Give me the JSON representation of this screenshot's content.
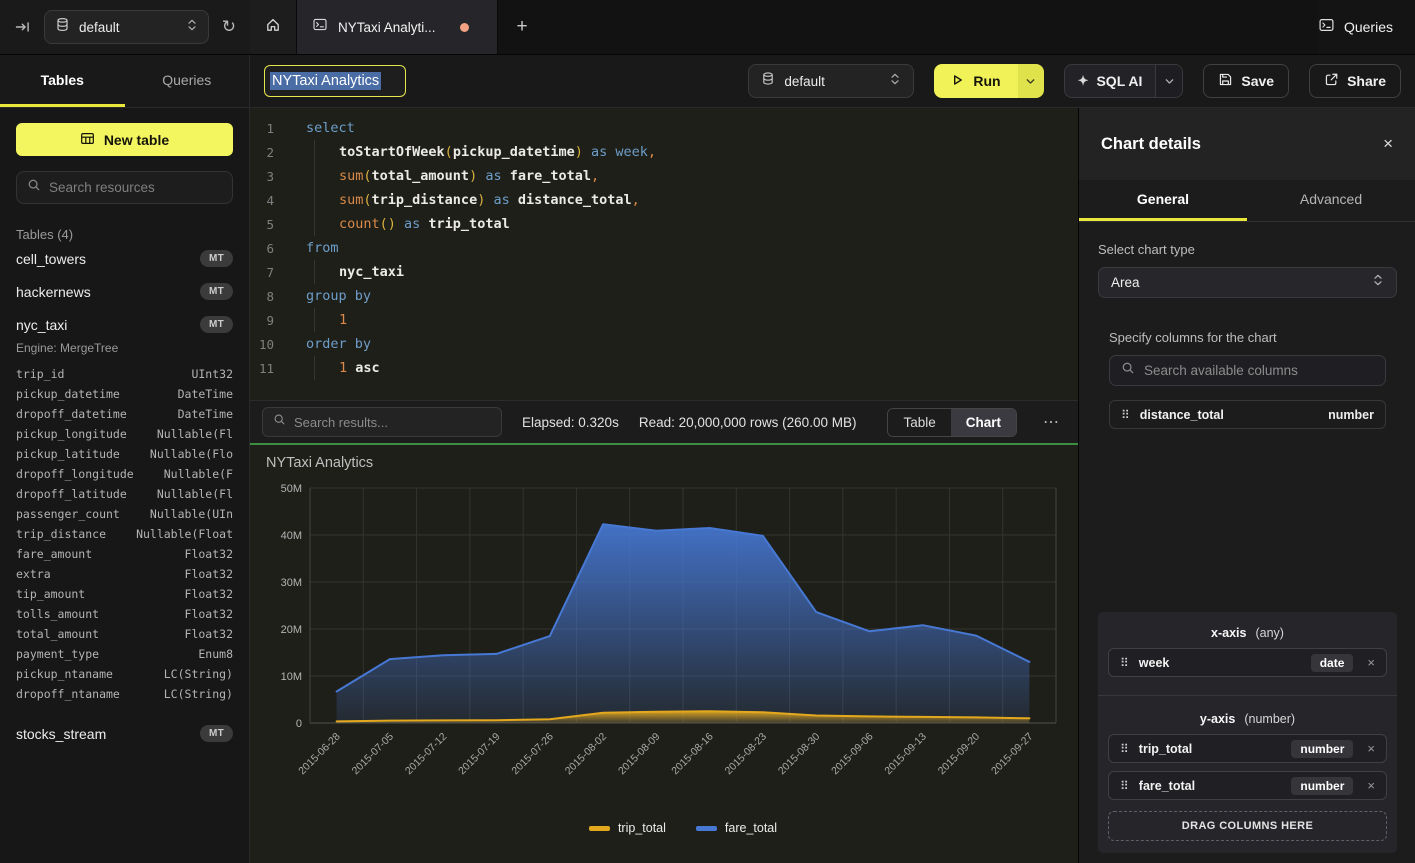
{
  "colors": {
    "accent_yellow": "#f1f35c",
    "tab_underline": "#e9e73a",
    "green_progress": "#3e8e41",
    "unsaved_dot": "#f2a183",
    "selection_blue": "#4a6da5",
    "series_trip_total": "#e3a81e",
    "series_fare_total": "#4678d4"
  },
  "icons": {
    "collapse": "⇥",
    "refresh": "↻",
    "plus": "+",
    "more": "⋯",
    "close": "×",
    "drag_handle": "⠿",
    "sparkle": "✦"
  },
  "topbar": {
    "database": "default",
    "tab_title": "NYTaxi Analyti...",
    "queries_label": "Queries"
  },
  "sidebar": {
    "tabs": [
      {
        "label": "Tables",
        "active": true
      },
      {
        "label": "Queries",
        "active": false
      }
    ],
    "new_table_label": "New table",
    "search_placeholder": "Search resources",
    "section_title": "Tables (4)",
    "tables": [
      {
        "name": "cell_towers",
        "badge": "MT"
      },
      {
        "name": "hackernews",
        "badge": "MT"
      },
      {
        "name": "nyc_taxi",
        "badge": "MT",
        "engine": "Engine: MergeTree",
        "columns": [
          [
            "trip_id",
            "UInt32"
          ],
          [
            "pickup_datetime",
            "DateTime"
          ],
          [
            "dropoff_datetime",
            "DateTime"
          ],
          [
            "pickup_longitude",
            "Nullable(Fl"
          ],
          [
            "pickup_latitude",
            "Nullable(Flo"
          ],
          [
            "dropoff_longitude",
            "Nullable(F"
          ],
          [
            "dropoff_latitude",
            "Nullable(Fl"
          ],
          [
            "passenger_count",
            "Nullable(UIn"
          ],
          [
            "trip_distance",
            "Nullable(Float"
          ],
          [
            "fare_amount",
            "Float32"
          ],
          [
            "extra",
            "Float32"
          ],
          [
            "tip_amount",
            "Float32"
          ],
          [
            "tolls_amount",
            "Float32"
          ],
          [
            "total_amount",
            "Float32"
          ],
          [
            "payment_type",
            "Enum8"
          ],
          [
            "pickup_ntaname",
            "LC(String)"
          ],
          [
            "dropoff_ntaname",
            "LC(String)"
          ]
        ]
      },
      {
        "name": "stocks_stream",
        "badge": "MT",
        "gap_before": true
      }
    ]
  },
  "query_header": {
    "title_value": "NYTaxi Analytics",
    "database": "default",
    "run_label": "Run",
    "sql_ai_label": "SQL AI",
    "save_label": "Save",
    "share_label": "Share"
  },
  "editor": {
    "lines": [
      {
        "n": "1",
        "ind": false,
        "toks": [
          [
            "kw",
            "select"
          ]
        ]
      },
      {
        "n": "2",
        "ind": true,
        "toks": [
          [
            "id",
            "toStartOfWeek"
          ],
          [
            "pr",
            "("
          ],
          [
            "id",
            "pickup_datetime"
          ],
          [
            "pr",
            ")"
          ],
          [
            "kw",
            " as "
          ],
          [
            "kw",
            "week"
          ],
          [
            "pu",
            ","
          ]
        ]
      },
      {
        "n": "3",
        "ind": true,
        "toks": [
          [
            "fn",
            "sum"
          ],
          [
            "pr",
            "("
          ],
          [
            "id",
            "total_amount"
          ],
          [
            "pr",
            ")"
          ],
          [
            "kw",
            " as "
          ],
          [
            "id",
            "fare_total"
          ],
          [
            "pu",
            ","
          ]
        ]
      },
      {
        "n": "4",
        "ind": true,
        "toks": [
          [
            "fn",
            "sum"
          ],
          [
            "pr",
            "("
          ],
          [
            "id",
            "trip_distance"
          ],
          [
            "pr",
            ")"
          ],
          [
            "kw",
            " as "
          ],
          [
            "id",
            "distance_total"
          ],
          [
            "pu",
            ","
          ]
        ]
      },
      {
        "n": "5",
        "ind": true,
        "toks": [
          [
            "fn",
            "count"
          ],
          [
            "pr",
            "()"
          ],
          [
            "kw",
            " as "
          ],
          [
            "id",
            "trip_total"
          ]
        ]
      },
      {
        "n": "6",
        "ind": false,
        "toks": [
          [
            "kw",
            "from"
          ]
        ]
      },
      {
        "n": "7",
        "ind": true,
        "toks": [
          [
            "id",
            "nyc_taxi"
          ]
        ]
      },
      {
        "n": "8",
        "ind": false,
        "toks": [
          [
            "kw",
            "group by"
          ]
        ]
      },
      {
        "n": "9",
        "ind": true,
        "toks": [
          [
            "num",
            "1"
          ]
        ]
      },
      {
        "n": "10",
        "ind": false,
        "toks": [
          [
            "kw",
            "order by"
          ]
        ]
      },
      {
        "n": "11",
        "ind": true,
        "toks": [
          [
            "num",
            "1"
          ],
          [
            "id",
            " asc"
          ]
        ]
      }
    ]
  },
  "results_bar": {
    "search_placeholder": "Search results...",
    "elapsed": "Elapsed: 0.320s",
    "read": "Read: 20,000,000 rows (260.00 MB)",
    "view_toggle": [
      {
        "label": "Table",
        "active": false
      },
      {
        "label": "Chart",
        "active": true
      }
    ]
  },
  "chart_data": {
    "type": "area",
    "title": "NYTaxi Analytics",
    "x": [
      "2015-06-28",
      "2015-07-05",
      "2015-07-12",
      "2015-07-19",
      "2015-07-26",
      "2015-08-02",
      "2015-08-09",
      "2015-08-16",
      "2015-08-23",
      "2015-08-30",
      "2015-09-06",
      "2015-09-13",
      "2015-09-20",
      "2015-09-27"
    ],
    "series": [
      {
        "name": "trip_total",
        "color": "#e3a81e",
        "values": [
          350000,
          500000,
          550000,
          600000,
          800000,
          2200000,
          2400000,
          2500000,
          2300000,
          1600000,
          1400000,
          1300000,
          1200000,
          1000000
        ]
      },
      {
        "name": "fare_total",
        "color": "#4678d4",
        "values": [
          6700000,
          13600000,
          14400000,
          14700000,
          18500000,
          42300000,
          40900000,
          41500000,
          39800000,
          23600000,
          19500000,
          20800000,
          18600000,
          13000000
        ]
      }
    ],
    "ylim": [
      0,
      50000000
    ],
    "yticks": [
      "0",
      "10M",
      "20M",
      "30M",
      "40M",
      "50M"
    ],
    "grid": true,
    "legend_position": "bottom"
  },
  "chart_details": {
    "title": "Chart details",
    "tabs": [
      {
        "label": "General",
        "active": true
      },
      {
        "label": "Advanced",
        "active": false
      }
    ],
    "chart_type_label": "Select chart type",
    "chart_type_value": "Area",
    "columns_label": "Specify columns for the chart",
    "columns_search_placeholder": "Search available columns",
    "available_columns": [
      {
        "name": "distance_total",
        "type": "number"
      }
    ],
    "x_axis": {
      "label": "x-axis",
      "constraint": "(any)",
      "columns": [
        {
          "name": "week",
          "type": "date"
        }
      ]
    },
    "y_axis": {
      "label": "y-axis",
      "constraint": "(number)",
      "columns": [
        {
          "name": "trip_total",
          "type": "number"
        },
        {
          "name": "fare_total",
          "type": "number"
        }
      ]
    },
    "drop_label": "DRAG COLUMNS HERE"
  }
}
